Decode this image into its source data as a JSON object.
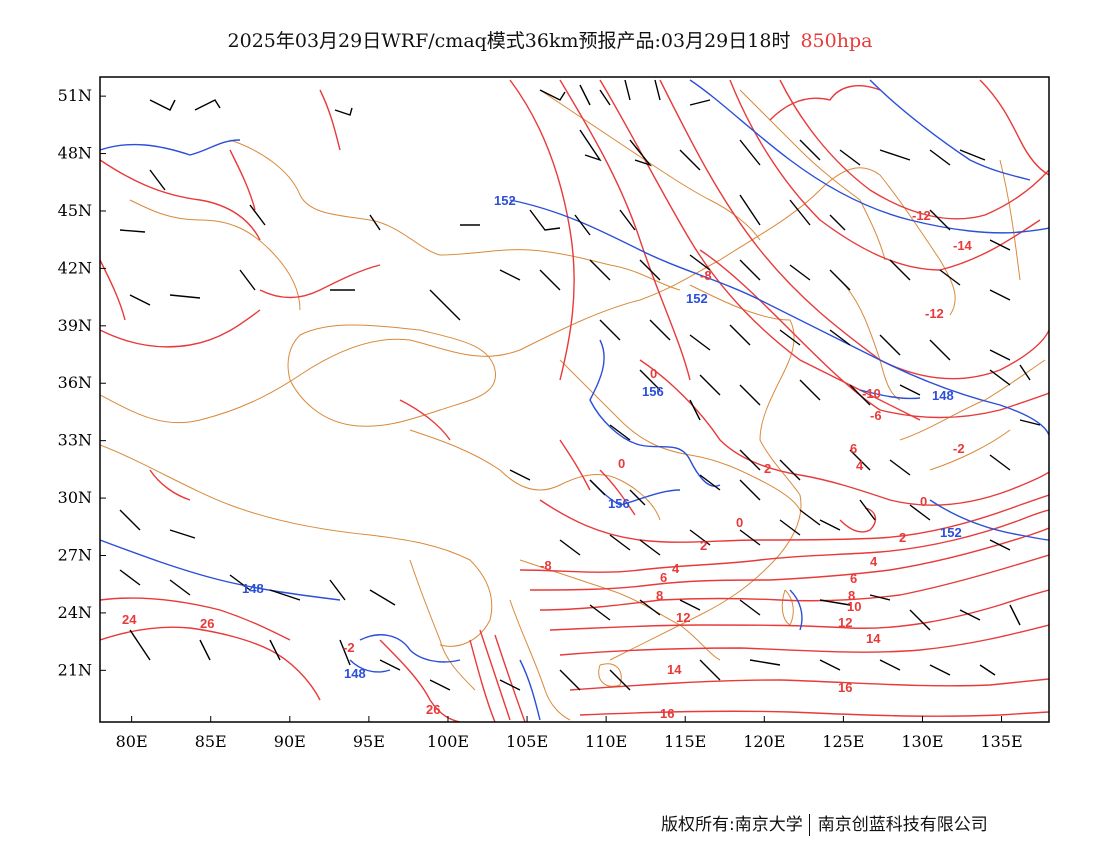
{
  "title": {
    "main": "2025年03月29日WRF/cmaq模式36km预报产品:03月29日18时",
    "level": "850hpa"
  },
  "axes": {
    "x_ticks": [
      "80E",
      "85E",
      "90E",
      "95E",
      "100E",
      "105E",
      "110E",
      "115E",
      "120E",
      "125E",
      "130E",
      "135E"
    ],
    "y_ticks": [
      "51N",
      "48N",
      "45N",
      "42N",
      "39N",
      "36N",
      "33N",
      "30N",
      "27N",
      "24N",
      "21N"
    ]
  },
  "footer": {
    "copyright": "版权所有:南京大学",
    "company": "南京创蓝科技有限公司"
  },
  "colors": {
    "temperature": "#e83a3a",
    "geopotential": "#2b4fd8",
    "boundary": "#d98a3c",
    "wind": "#000000"
  },
  "chart_data": {
    "type": "map",
    "projection": "lat-lon",
    "x_range_lon": [
      78,
      138
    ],
    "y_range_lat": [
      18.3,
      52
    ],
    "temperature_labels": [
      "-14",
      "-12",
      "-12",
      "-10",
      "-8",
      "-8",
      "-6",
      "-2",
      "-2",
      "0",
      "0",
      "0",
      "0",
      "2",
      "2",
      "2",
      "4",
      "4",
      "4",
      "6",
      "6",
      "6",
      "8",
      "8",
      "10",
      "12",
      "12",
      "14",
      "14",
      "16",
      "16",
      "24",
      "26",
      "26"
    ],
    "geopotential_labels": [
      "152",
      "152",
      "156",
      "156",
      "148",
      "148",
      "148",
      "152"
    ]
  }
}
